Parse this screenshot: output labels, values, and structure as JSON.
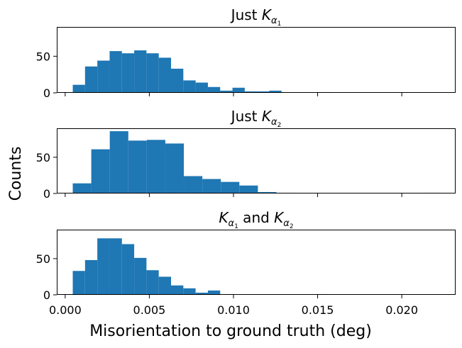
{
  "chart_data": {
    "type": "histogram",
    "shared_x": true,
    "xlabel": "Misorientation to ground truth (deg)",
    "ylabel": "Counts",
    "xlim": [
      -0.0005,
      0.0232
    ],
    "xticks": [
      0.0,
      0.005,
      0.01,
      0.015,
      0.02
    ],
    "xtick_labels": [
      "0.000",
      "0.005",
      "0.010",
      "0.015",
      "0.020"
    ],
    "color": "#1f77b4",
    "panels": [
      {
        "title": {
          "main": "Just ",
          "var": "K",
          "sub": "α",
          "subsub": "1",
          "tail": ""
        },
        "ylim": [
          0,
          90
        ],
        "yticks": [
          0,
          50
        ],
        "yticks_labels": [
          "0",
          "50"
        ],
        "bin_edges": [
          0.00045,
          0.00118,
          0.00191,
          0.00264,
          0.00337,
          0.0041,
          0.00483,
          0.00556,
          0.00629,
          0.00702,
          0.00775,
          0.00848,
          0.00921,
          0.00994,
          0.01067,
          0.0114,
          0.01213,
          0.01286,
          0.01359,
          0.01432,
          0.01505,
          0.01578,
          0.01651,
          0.01724,
          0.01797,
          0.0187,
          0.01943,
          0.02016,
          0.02089,
          0.02162,
          0.02235
        ],
        "counts": [
          11,
          36,
          44,
          57,
          54,
          58,
          54,
          48,
          33,
          17,
          14,
          8,
          3,
          7,
          2,
          2,
          3,
          0,
          0,
          0,
          1,
          0,
          0,
          0,
          0,
          0,
          0,
          0,
          0,
          0
        ]
      },
      {
        "title": {
          "main": "Just ",
          "var": "K",
          "sub": "α",
          "subsub": "2",
          "tail": ""
        },
        "ylim": [
          0,
          90
        ],
        "yticks": [
          0,
          50
        ],
        "yticks_labels": [
          "0",
          "50"
        ],
        "bin_edges": [
          0.00045,
          0.00155,
          0.00265,
          0.00375,
          0.00485,
          0.00595,
          0.00705,
          0.00815,
          0.00925,
          0.01035,
          0.01145,
          0.01255,
          0.01365,
          0.01475,
          0.01585,
          0.01695,
          0.01805,
          0.01915,
          0.02025,
          0.02135,
          0.02245
        ],
        "counts": [
          14,
          61,
          86,
          73,
          74,
          69,
          24,
          20,
          16,
          11,
          2,
          1,
          0,
          0,
          0,
          0,
          0,
          0,
          0,
          1
        ]
      },
      {
        "title": {
          "main": "",
          "var": "K",
          "sub": "α",
          "subsub": "1",
          "tail": " and ",
          "var2": "K",
          "sub2": "α",
          "subsub2": "2"
        },
        "ylim": [
          0,
          90
        ],
        "yticks": [
          0,
          50
        ],
        "yticks_labels": [
          "0",
          "50"
        ],
        "bin_edges": [
          0.00045,
          0.00118,
          0.00191,
          0.00264,
          0.00337,
          0.0041,
          0.00483,
          0.00556,
          0.00629,
          0.00702,
          0.00775,
          0.00848,
          0.00921,
          0.00994,
          0.01067,
          0.0114,
          0.01213,
          0.01286,
          0.01359,
          0.01432,
          0.01505,
          0.01578,
          0.01651,
          0.01724,
          0.01797,
          0.0187,
          0.01943,
          0.02016,
          0.02089,
          0.02162,
          0.02235
        ],
        "counts": [
          33,
          48,
          78,
          78,
          70,
          51,
          34,
          25,
          13,
          9,
          3,
          6,
          1,
          0,
          0,
          0,
          0,
          0,
          0,
          0,
          1,
          0,
          0,
          0,
          0,
          0,
          0,
          0,
          0,
          0
        ]
      }
    ]
  }
}
